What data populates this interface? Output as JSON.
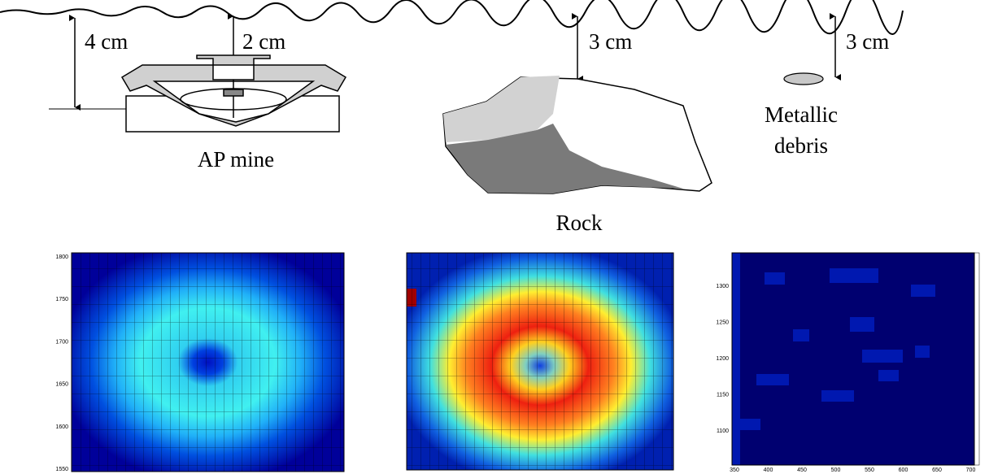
{
  "labels": {
    "depth_mine_base": "4 cm",
    "depth_mine_top": "2 cm",
    "depth_rock": "3 cm",
    "depth_debris": "3 cm",
    "mine": "AP mine",
    "rock": "Rock",
    "debris_line1": "Metallic",
    "debris_line2": "debris"
  },
  "panels": [
    {
      "yticks": [
        "1800",
        "1750",
        "1700",
        "1650",
        "1600",
        "1550"
      ]
    },
    {
      "yticks": [
        "1300",
        "1250",
        "1200",
        "1150",
        "1100"
      ],
      "xticks": [
        "350",
        "400",
        "450",
        "500",
        "550",
        "600",
        "650",
        "700"
      ]
    }
  ]
}
